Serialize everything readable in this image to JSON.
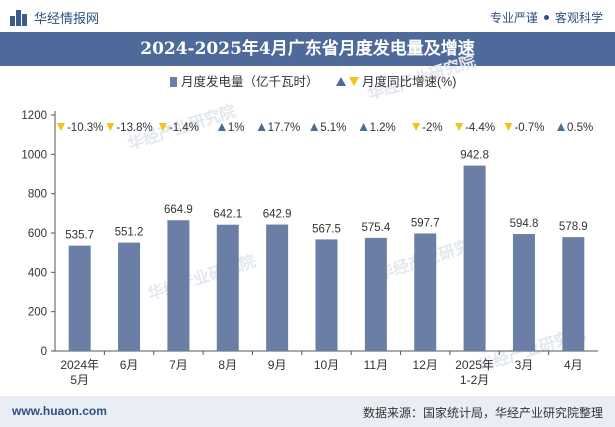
{
  "header": {
    "brand": "华经情报网",
    "tagline_left": "专业严谨",
    "tagline_right": "客观科学"
  },
  "footer": {
    "website": "www.huaon.com",
    "source": "数据来源：国家统计局，华经产业研究院整理"
  },
  "watermark": "华经产业研究院",
  "colors": {
    "bar": "#6b7fa6",
    "title_bg": "#4d6a9a",
    "up": "#4a6d98",
    "down": "#f0c419"
  },
  "chart_data": {
    "type": "bar",
    "title": "2024-2025年4月广东省月度发电量及增速",
    "categories": [
      "2024年\n5月",
      "6月",
      "7月",
      "8月",
      "9月",
      "10月",
      "11月",
      "12月",
      "2025年\n1-2月",
      "3月",
      "4月"
    ],
    "series": [
      {
        "name": "月度发电量（亿千瓦时）",
        "values": [
          535.7,
          551.2,
          664.9,
          642.1,
          642.9,
          567.5,
          575.4,
          597.7,
          942.8,
          594.8,
          578.9
        ]
      },
      {
        "name": "月度同比增速(%)",
        "values": [
          -10.3,
          -13.8,
          -1.4,
          1,
          17.7,
          5.1,
          1.2,
          -2,
          -4.4,
          -0.7,
          0.5
        ],
        "labels": [
          "-10.3%",
          "-13.8%",
          "-1.4%",
          "1%",
          "17.7%",
          "5.1%",
          "1.2%",
          "-2%",
          "-4.4%",
          "-0.7%",
          "0.5%"
        ]
      }
    ],
    "ylim": [
      0,
      1200
    ],
    "yticks": [
      0,
      200,
      400,
      600,
      800,
      1000,
      1200
    ],
    "legend_position": "top-center",
    "grid": false
  }
}
